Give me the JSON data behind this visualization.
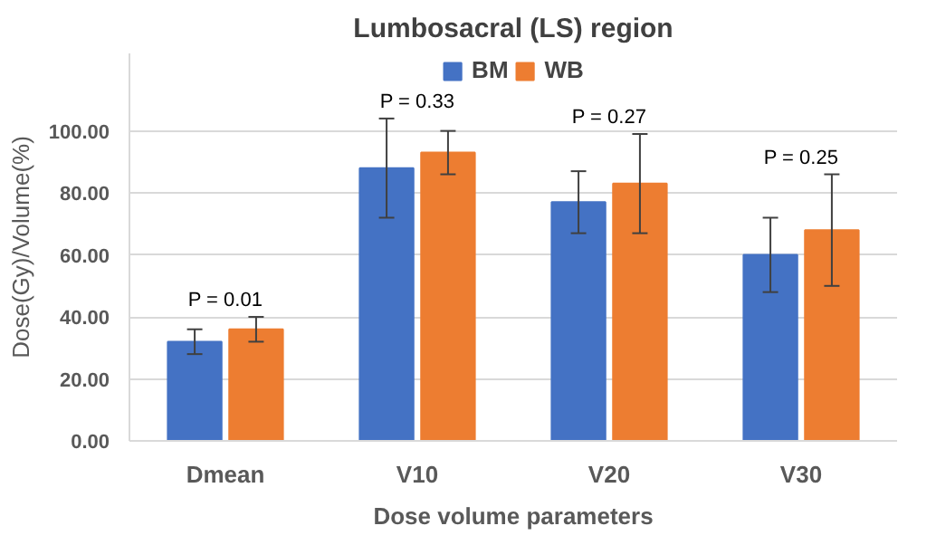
{
  "chart_data": {
    "type": "bar",
    "title": "Lumbosacral (LS) region",
    "xlabel": "Dose volume parameters",
    "ylabel": "Dose(Gy)/Volume(%)",
    "categories": [
      "Dmean",
      "V10",
      "V20",
      "V30"
    ],
    "series": [
      {
        "name": "BM",
        "color": "#4472c4",
        "values": [
          32,
          88,
          77,
          60
        ],
        "errors": [
          4,
          16,
          10,
          12
        ]
      },
      {
        "name": "WB",
        "color": "#ed7d31",
        "values": [
          36,
          93,
          83,
          68
        ],
        "errors": [
          4,
          7,
          16,
          18
        ]
      }
    ],
    "ylim": [
      0,
      125
    ],
    "yticks": [
      {
        "value": 0,
        "label": "0.00"
      },
      {
        "value": 20,
        "label": "20.00"
      },
      {
        "value": 40,
        "label": "40.00"
      },
      {
        "value": 60,
        "label": "60.00"
      },
      {
        "value": 80,
        "label": "80.00"
      },
      {
        "value": 100,
        "label": "100.00"
      }
    ],
    "annotations": [
      "P = 0.01",
      "P = 0.33",
      "P = 0.27",
      "P = 0.25"
    ],
    "grid": "y",
    "legend": "top"
  }
}
